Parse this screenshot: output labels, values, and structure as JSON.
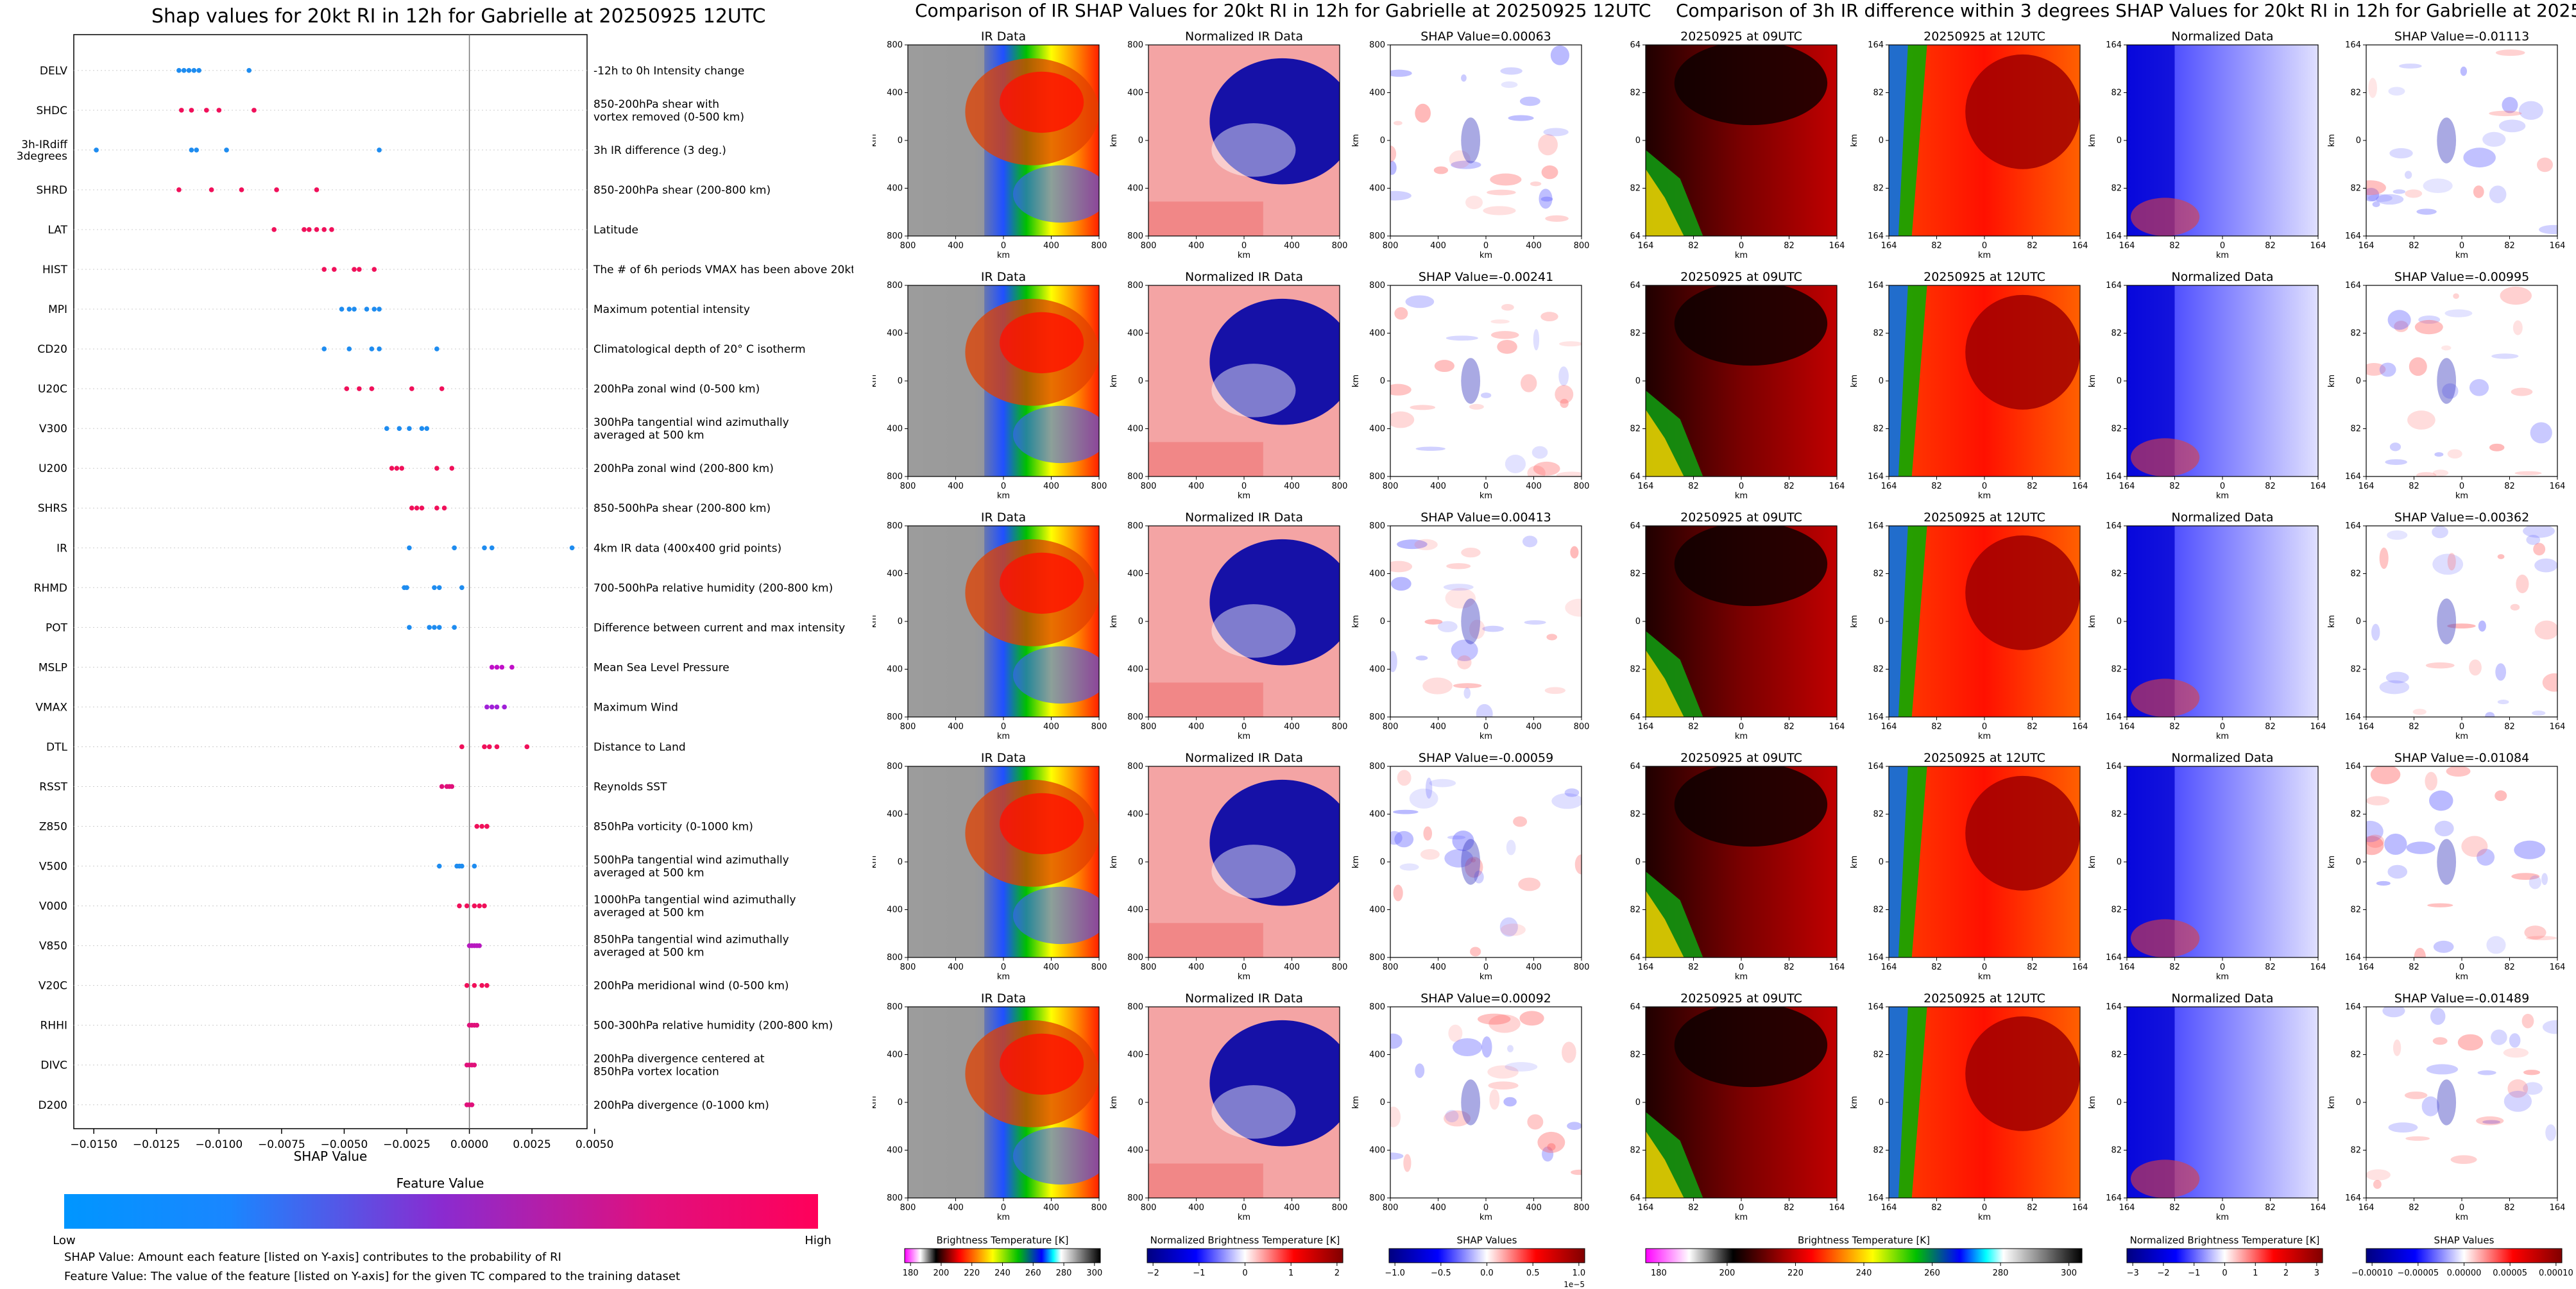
{
  "colors": {
    "feature_low": "#1e90ff",
    "feature_mid": "#9b20c8",
    "feature_high": "#ff0066",
    "shap_neg": "#0000b4",
    "shap_pos": "#b40000"
  },
  "left_panel": {
    "title": "Shap values for 20kt RI in 12h for Gabrielle at 20250925 12UTC",
    "xlabel": "SHAP Value",
    "colorbar_title": "Feature Value",
    "colorbar_low": "Low",
    "colorbar_high": "High",
    "footnotes": [
      "SHAP Value: Amount each feature [listed on Y-axis] contributes to the probability of RI",
      "Feature Value: The value of the feature [listed on Y-axis] for the given TC compared to the training dataset"
    ]
  },
  "middle_panel": {
    "title": "Comparison of IR SHAP Values for 20kt RI in 12h for Gabrielle at 20250925 12UTC",
    "col_titles": [
      "IR Data",
      "Normalized IR Data"
    ],
    "shap_titles": [
      "SHAP Value=0.00063",
      "SHAP Value=-0.00241",
      "SHAP Value=0.00413",
      "SHAP Value=-0.00059",
      "SHAP Value=0.00092"
    ],
    "axis_unit": "km",
    "ticks": [
      "800",
      "400",
      "0",
      "400",
      "800"
    ],
    "colorbars": [
      {
        "label": "Brightness Temperature [K]",
        "ticks": [
          "180",
          "200",
          "220",
          "240",
          "260",
          "280",
          "300"
        ],
        "offset": ""
      },
      {
        "label": "Normalized Brightness Temperature [K]",
        "ticks": [
          "−2",
          "−1",
          "0",
          "1",
          "2"
        ],
        "offset": ""
      },
      {
        "label": "SHAP Values",
        "ticks": [
          "−1.0",
          "−0.5",
          "0.0",
          "0.5",
          "1.0"
        ],
        "offset": "1e−5"
      }
    ]
  },
  "right_panel": {
    "title": "Comparison of 3h IR difference within 3 degrees SHAP Values for 20kt RI in 12h for Gabrielle at 20250925 12UTC",
    "col_titles": [
      "20250925 at 09UTC",
      "20250925 at 12UTC",
      "Normalized Data"
    ],
    "shap_titles": [
      "SHAP Value=-0.01113",
      "SHAP Value=-0.00995",
      "SHAP Value=-0.00362",
      "SHAP Value=-0.01084",
      "SHAP Value=-0.01489"
    ],
    "axis_unit": "km",
    "ticks": [
      "164",
      "82",
      "0",
      "82",
      "164"
    ],
    "colorbars": [
      {
        "label": "Brightness Temperature [K]",
        "ticks": [
          "180",
          "200",
          "220",
          "240",
          "260",
          "280",
          "300"
        ]
      },
      {
        "label": "Normalized Brightness Temperature [K]",
        "ticks": [
          "−3",
          "−2",
          "−1",
          "0",
          "1",
          "2",
          "3"
        ]
      },
      {
        "label": "SHAP Values",
        "ticks": [
          "−0.00010",
          "−0.00005",
          "0.00000",
          "0.00005",
          "0.00010"
        ]
      }
    ]
  },
  "chart_data": {
    "type": "scatter",
    "title": "Shap values for 20kt RI in 12h for Gabrielle at 20250925 12UTC",
    "xlabel": "SHAP Value",
    "xlim": [
      -0.0158,
      0.0047
    ],
    "xticks": [
      "−0.0150",
      "−0.0125",
      "−0.0100",
      "−0.0075",
      "−0.0050",
      "−0.0025",
      "0.0000",
      "0.0025",
      "0.0050"
    ],
    "xtick_values": [
      -0.015,
      -0.0125,
      -0.01,
      -0.0075,
      -0.005,
      -0.0025,
      0,
      0.0025,
      0.005
    ],
    "features": [
      {
        "name": "DELV",
        "desc": "-12h to 0h Intensity change",
        "color": "#1e8cf0",
        "points": [
          -0.0116,
          -0.0114,
          -0.0112,
          -0.011,
          -0.0108,
          -0.0088
        ]
      },
      {
        "name": "SHDC",
        "desc": "850-200hPa shear with\nvortex removed (0-500 km)",
        "color": "#f0105a",
        "points": [
          -0.0115,
          -0.0111,
          -0.0105,
          -0.01,
          -0.0086
        ]
      },
      {
        "name": "3h-IRdiff\n3degrees",
        "desc": "3h IR difference (3 deg.)",
        "color": "#1e8cf0",
        "points": [
          -0.0149,
          -0.0111,
          -0.0109,
          -0.0097,
          -0.0036
        ]
      },
      {
        "name": "SHRD",
        "desc": "850-200hPa shear (200-800 km)",
        "color": "#f0105a",
        "points": [
          -0.0116,
          -0.0103,
          -0.0091,
          -0.0077,
          -0.0061
        ]
      },
      {
        "name": "LAT",
        "desc": "Latitude",
        "color": "#f0105a",
        "points": [
          -0.0078,
          -0.0066,
          -0.0064,
          -0.0061,
          -0.0058,
          -0.0055
        ]
      },
      {
        "name": "HIST",
        "desc": "The # of 6h periods VMAX has been above 20kt",
        "color": "#f0105a",
        "points": [
          -0.0058,
          -0.0054,
          -0.0046,
          -0.0044,
          -0.0038
        ]
      },
      {
        "name": "MPI",
        "desc": "Maximum potential intensity",
        "color": "#1e8cf0",
        "points": [
          -0.0051,
          -0.0048,
          -0.0046,
          -0.0041,
          -0.0038,
          -0.0036
        ]
      },
      {
        "name": "CD20",
        "desc": "Climatological depth of 20° C isotherm",
        "color": "#1e8cf0",
        "points": [
          -0.0058,
          -0.0048,
          -0.0039,
          -0.0036,
          -0.0013
        ]
      },
      {
        "name": "U20C",
        "desc": "200hPa zonal wind (0-500 km)",
        "color": "#f0105a",
        "points": [
          -0.0049,
          -0.0044,
          -0.0039,
          -0.0023,
          -0.0011
        ]
      },
      {
        "name": "V300",
        "desc": "300hPa tangential wind azimuthally\naveraged at 500 km",
        "color": "#1e8cf0",
        "points": [
          -0.0033,
          -0.0028,
          -0.0024,
          -0.0019,
          -0.0017
        ]
      },
      {
        "name": "U200",
        "desc": "200hPa zonal wind (200-800 km)",
        "color": "#f0105a",
        "points": [
          -0.0031,
          -0.0029,
          -0.0027,
          -0.0013,
          -0.0007
        ]
      },
      {
        "name": "SHRS",
        "desc": "850-500hPa shear (200-800 km)",
        "color": "#f0105a",
        "points": [
          -0.0023,
          -0.0021,
          -0.0019,
          -0.0013,
          -0.001
        ]
      },
      {
        "name": "IR",
        "desc": "4km IR data (400x400 grid points)",
        "color": "#1e8cf0",
        "points": [
          -0.0024,
          -0.0006,
          0.0006,
          0.0009,
          0.0041
        ]
      },
      {
        "name": "RHMD",
        "desc": "700-500hPa relative humidity (200-800 km)",
        "color": "#1e8cf0",
        "points": [
          -0.0026,
          -0.0025,
          -0.0014,
          -0.0012,
          -0.0003
        ]
      },
      {
        "name": "POT",
        "desc": "Difference between current and max intensity",
        "color": "#1e8cf0",
        "points": [
          -0.0024,
          -0.0016,
          -0.0014,
          -0.0012,
          -0.0006
        ]
      },
      {
        "name": "MSLP",
        "desc": "Mean Sea Level Pressure",
        "color": "#c010c8",
        "points": [
          0.0009,
          0.0011,
          0.0013,
          0.0017
        ]
      },
      {
        "name": "VMAX",
        "desc": "Maximum Wind",
        "color": "#a020d8",
        "points": [
          0.0007,
          0.0009,
          0.0011,
          0.0014
        ]
      },
      {
        "name": "DTL",
        "desc": "Distance to Land",
        "color": "#f0105a",
        "points": [
          -0.0003,
          0.0006,
          0.0008,
          0.0011,
          0.0023
        ]
      },
      {
        "name": "RSST",
        "desc": "Reynolds SST",
        "color": "#e0107a",
        "points": [
          -0.0011,
          -0.0009,
          -0.0008,
          -0.0007
        ]
      },
      {
        "name": "Z850",
        "desc": "850hPa vorticity (0-1000 km)",
        "color": "#f0105a",
        "points": [
          0.0003,
          0.0005,
          0.0007,
          0.0007
        ]
      },
      {
        "name": "V500",
        "desc": "500hPa tangential wind azimuthally\naveraged at 500 km",
        "color": "#1e8cf0",
        "points": [
          -0.0012,
          -0.0005,
          -0.0004,
          -0.0003,
          0.0002
        ]
      },
      {
        "name": "V000",
        "desc": "1000hPa tangential wind azimuthally\naveraged at 500 km",
        "color": "#f0105a",
        "points": [
          -0.0004,
          -0.0001,
          0.0002,
          0.0004,
          0.0006
        ]
      },
      {
        "name": "V850",
        "desc": "850hPa tangential wind azimuthally\naveraged at 500 km",
        "color": "#b818c0",
        "points": [
          0.0,
          0.0001,
          0.0002,
          0.0003,
          0.0004
        ]
      },
      {
        "name": "V20C",
        "desc": "200hPa meridional wind (0-500 km)",
        "color": "#f0105a",
        "points": [
          -0.0001,
          0.0002,
          0.0005,
          0.0007
        ]
      },
      {
        "name": "RHHI",
        "desc": "500-300hPa relative humidity (200-800 km)",
        "color": "#e0107a",
        "points": [
          0.0,
          0.0001,
          0.0002,
          0.0003
        ]
      },
      {
        "name": "DIVC",
        "desc": "200hPa divergence centered at\n850hPa vortex location",
        "color": "#e0107a",
        "points": [
          -0.0001,
          0.0,
          0.0001,
          0.0002
        ]
      },
      {
        "name": "D200",
        "desc": "200hPa divergence (0-1000 km)",
        "color": "#e0107a",
        "points": [
          -0.0001,
          0.0,
          0.0001
        ]
      }
    ]
  }
}
